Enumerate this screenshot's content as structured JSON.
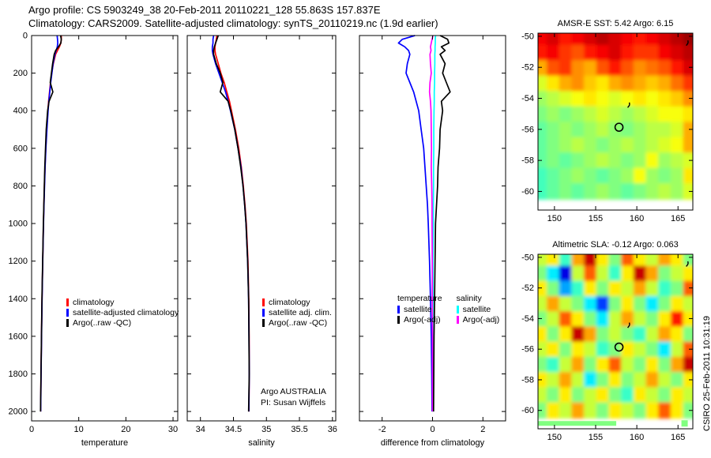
{
  "header": {
    "line1": "Argo profile: CS 5903249_38 20-Feb-2011 20110221_128 55.863S 157.837E",
    "line2": "Climatology: CARS2009. Satellite-adjusted climatology: synTS_20110219.nc (1.9d earlier)"
  },
  "stamp": "CSIRO 25-Feb-2011 10:31:19",
  "pi_note": {
    "line1": "Argo AUSTRALIA",
    "line2": "PI: Susan Wijffels"
  },
  "colors": {
    "climatology": "#ff0000",
    "satellite": "#0000ff",
    "argo": "#000000",
    "sal_satellite": "#00ffff",
    "sal_argo": "#ff00ff"
  },
  "legends": {
    "temperature": [
      {
        "label": "climatology",
        "color": "#ff0000"
      },
      {
        "label": "satellite-adjusted climatology",
        "color": "#0000ff"
      },
      {
        "label": "Argo(..raw -QC)",
        "color": "#000000"
      }
    ],
    "salinity": [
      {
        "label": "climatology",
        "color": "#ff0000"
      },
      {
        "label": "satellite adj. clim.",
        "color": "#0000ff"
      },
      {
        "label": "Argo(..raw -QC)",
        "color": "#000000"
      }
    ],
    "difference": {
      "columns": [
        {
          "header": "temperature",
          "items": [
            {
              "label": "satellite",
              "color": "#0000ff"
            },
            {
              "label": "Argo(-adj)",
              "color": "#000000"
            }
          ]
        },
        {
          "header": "salinity",
          "items": [
            {
              "label": "satellite",
              "color": "#00ffff"
            },
            {
              "label": "Argo(-adj)",
              "color": "#ff00ff"
            }
          ]
        }
      ]
    }
  },
  "chart_data": [
    {
      "id": "temperature_profile",
      "type": "line",
      "xlabel": "temperature",
      "xlim": [
        0,
        31
      ],
      "xticks": [
        0,
        10,
        20,
        30
      ],
      "ylim": [
        0,
        2050
      ],
      "yticks": [
        0,
        200,
        400,
        600,
        800,
        1000,
        1200,
        1400,
        1600,
        1800,
        2000
      ],
      "ytick_labels": true,
      "depths": [
        0,
        20,
        40,
        60,
        80,
        100,
        150,
        200,
        250,
        300,
        350,
        400,
        500,
        600,
        700,
        800,
        900,
        1000,
        1200,
        1400,
        1600,
        1800,
        2000
      ],
      "series": [
        {
          "name": "climatology",
          "color": "#ff0000",
          "values": [
            6.3,
            6.3,
            6.2,
            5.9,
            5.5,
            5.1,
            4.6,
            4.25,
            4.0,
            3.8,
            3.6,
            3.45,
            3.2,
            3.0,
            2.85,
            2.72,
            2.62,
            2.52,
            2.36,
            2.22,
            2.1,
            2.0,
            1.92
          ]
        },
        {
          "name": "satellite-adjusted climatology",
          "color": "#0000ff",
          "values": [
            5.42,
            5.5,
            5.55,
            5.45,
            5.2,
            4.95,
            4.55,
            4.3,
            4.05,
            3.85,
            3.65,
            3.5,
            3.25,
            3.03,
            2.87,
            2.74,
            2.63,
            2.53,
            2.37,
            2.23,
            2.11,
            2.01,
            1.93
          ]
        },
        {
          "name": "Argo(..raw -QC)",
          "color": "#000000",
          "values": [
            6.15,
            6.3,
            6.2,
            5.7,
            5.1,
            4.8,
            4.45,
            4.2,
            3.95,
            4.5,
            3.7,
            3.4,
            3.1,
            2.95,
            2.8,
            2.7,
            2.6,
            2.5,
            2.35,
            2.2,
            2.1,
            2.0,
            1.9
          ]
        }
      ]
    },
    {
      "id": "salinity_profile",
      "type": "line",
      "xlabel": "salinity",
      "xlim": [
        33.8,
        36.05
      ],
      "xticks": [
        34,
        34.5,
        35,
        35.5,
        36
      ],
      "ylim": [
        0,
        2050
      ],
      "yticks": [
        0,
        200,
        400,
        600,
        800,
        1000,
        1200,
        1400,
        1600,
        1800,
        2000
      ],
      "ytick_labels": false,
      "depths": [
        0,
        20,
        40,
        60,
        80,
        100,
        150,
        200,
        250,
        300,
        350,
        400,
        500,
        600,
        700,
        800,
        900,
        1000,
        1200,
        1400,
        1600,
        1800,
        2000
      ],
      "series": [
        {
          "name": "climatology",
          "color": "#ff0000",
          "values": [
            34.25,
            34.24,
            34.23,
            34.22,
            34.22,
            34.23,
            34.27,
            34.31,
            34.36,
            34.4,
            34.44,
            34.47,
            34.53,
            34.58,
            34.62,
            34.65,
            34.675,
            34.695,
            34.72,
            34.732,
            34.738,
            34.74,
            34.735
          ]
        },
        {
          "name": "satellite adj. clim.",
          "color": "#0000ff",
          "values": [
            34.2,
            34.19,
            34.19,
            34.18,
            34.18,
            34.19,
            34.23,
            34.28,
            34.33,
            34.38,
            34.42,
            34.455,
            34.52,
            34.57,
            34.615,
            34.645,
            34.67,
            34.69,
            34.716,
            34.73,
            34.736,
            34.74,
            34.733
          ]
        },
        {
          "name": "Argo(..raw -QC)",
          "color": "#000000",
          "values": [
            34.27,
            34.25,
            34.23,
            34.21,
            34.2,
            34.2,
            34.24,
            34.3,
            34.34,
            34.3,
            34.42,
            34.46,
            34.52,
            34.57,
            34.61,
            34.645,
            34.67,
            34.69,
            34.715,
            34.73,
            34.735,
            34.74,
            34.73
          ]
        }
      ]
    },
    {
      "id": "difference_profile",
      "type": "line",
      "xlabel": "difference from climatology",
      "xlim": [
        -2.9,
        2.9
      ],
      "xticks": [
        -2,
        0,
        2
      ],
      "ylim": [
        0,
        2050
      ],
      "yticks": [
        0,
        200,
        400,
        600,
        800,
        1000,
        1200,
        1400,
        1600,
        1800,
        2000
      ],
      "ytick_labels": false,
      "depths": [
        0,
        20,
        40,
        60,
        80,
        100,
        150,
        200,
        250,
        300,
        350,
        400,
        500,
        600,
        700,
        800,
        900,
        1000,
        1200,
        1400,
        1600,
        1800,
        2000
      ],
      "series": [
        {
          "name": "temperature satellite",
          "color": "#0000ff",
          "values": [
            -0.7,
            -1.2,
            -1.35,
            -1.1,
            -0.95,
            -0.9,
            -1.0,
            -1.05,
            -0.9,
            -0.75,
            -0.65,
            -0.55,
            -0.45,
            -0.35,
            -0.3,
            -0.25,
            -0.2,
            -0.17,
            -0.12,
            -0.08,
            -0.05,
            -0.03,
            -0.02
          ]
        },
        {
          "name": "salinity satellite",
          "color": "#00ffff",
          "values": [
            0.12,
            0.11,
            0.11,
            0.1,
            0.1,
            0.09,
            0.09,
            0.08,
            0.08,
            0.07,
            0.07,
            0.06,
            0.05,
            0.05,
            0.04,
            0.04,
            0.03,
            0.03,
            0.02,
            0.02,
            0.01,
            0.01,
            0.01
          ]
        },
        {
          "name": "salinity Argo(-adj)",
          "color": "#ff00ff",
          "values": [
            0.02,
            -0.02,
            -0.05,
            -0.08,
            -0.06,
            -0.1,
            -0.08,
            -0.05,
            -0.1,
            -0.12,
            -0.08,
            -0.06,
            -0.05,
            -0.04,
            -0.05,
            -0.03,
            -0.02,
            -0.02,
            -0.01,
            -0.01,
            0.0,
            0.0,
            0.0
          ]
        },
        {
          "name": "temperature Argo(-adj)",
          "color": "#000000",
          "values": [
            0.3,
            0.6,
            0.65,
            0.35,
            0.5,
            0.3,
            0.5,
            0.4,
            0.55,
            0.7,
            0.35,
            0.4,
            0.3,
            0.28,
            0.22,
            0.2,
            0.16,
            0.12,
            0.1,
            0.08,
            0.06,
            0.05,
            0.04
          ]
        }
      ]
    },
    {
      "id": "sst_map",
      "type": "heatmap",
      "title": "AMSR-E SST: 5.42 Argo: 6.15",
      "xlim": [
        148,
        166.8
      ],
      "xticks": [
        150,
        155,
        160,
        165
      ],
      "ylim": [
        -49.8,
        -61.2
      ],
      "yticks": [
        -50,
        -52,
        -54,
        -56,
        -58,
        -60
      ],
      "domain": [
        -3,
        14
      ],
      "grid_lat_bottom": -60.5,
      "grid": [
        [
          12,
          12.5,
          11.5,
          12,
          12.5,
          13,
          12.5,
          12,
          11.5,
          12,
          12.5,
          13,
          13.5
        ],
        [
          11.5,
          12,
          11,
          10.5,
          11.5,
          12,
          12.5,
          11.5,
          11,
          11,
          12,
          12.5,
          13
        ],
        [
          9,
          10.5,
          11,
          9.5,
          9,
          10.5,
          11.5,
          10.5,
          9.5,
          10,
          10.5,
          11.5,
          12.5
        ],
        [
          7,
          8,
          9,
          9.5,
          8.5,
          8,
          9,
          9.5,
          9,
          8.5,
          9,
          10,
          11
        ],
        [
          6,
          6.5,
          7,
          7.5,
          8,
          7.5,
          7,
          7.5,
          8,
          7.5,
          8,
          8.5,
          9.5
        ],
        [
          5.5,
          6,
          5.5,
          6,
          6.5,
          7,
          6.5,
          6,
          6.5,
          7,
          7.5,
          7.5,
          8
        ],
        [
          5,
          5.5,
          6,
          5.5,
          6,
          6.5,
          5.8,
          5.5,
          6,
          6.5,
          6.5,
          7,
          9
        ],
        [
          5,
          5.5,
          6,
          6.5,
          6,
          5.5,
          6,
          6.5,
          6,
          6.5,
          7,
          7.5,
          9
        ],
        [
          5,
          5.5,
          5,
          5.5,
          6,
          6.5,
          6,
          5.5,
          6,
          7.5,
          6,
          6.5,
          7
        ],
        [
          4.5,
          5,
          5.5,
          6,
          5.5,
          5,
          5.5,
          6,
          7.5,
          6,
          5.5,
          6,
          8
        ],
        [
          4.5,
          5,
          5.5,
          5,
          5.5,
          6,
          5.5,
          5,
          5.5,
          6,
          6.5,
          6,
          7
        ]
      ],
      "float": {
        "lon": 157.837,
        "lat": -55.863
      },
      "islands": [
        {
          "name": "Macquarie Island",
          "lon": 158.9,
          "lat": -54.6
        },
        {
          "name": "Auckland Islands",
          "lon": 166.0,
          "lat": -50.6
        }
      ]
    },
    {
      "id": "sla_map",
      "type": "heatmap",
      "title": "Altimetric SLA: -0.12 Argo: 0.063",
      "xlim": [
        148,
        166.8
      ],
      "xticks": [
        150,
        155,
        160,
        165
      ],
      "ylim": [
        -49.8,
        -61.2
      ],
      "yticks": [
        -50,
        -52,
        -54,
        -56,
        -58,
        -60
      ],
      "domain": [
        -0.35,
        0.35
      ],
      "grid_lat_bottom": -60.5,
      "grid": [
        [
          0.05,
          0.1,
          -0.05,
          0.15,
          0.3,
          0.1,
          0,
          0.2,
          0.1,
          0.05,
          0.15,
          0.1,
          0
        ],
        [
          0,
          -0.1,
          -0.28,
          0.05,
          0.2,
          0.05,
          -0.05,
          0.1,
          0.3,
          0.15,
          0,
          0.05,
          0.1
        ],
        [
          0.1,
          0,
          -0.15,
          -0.05,
          0.1,
          0,
          0.1,
          0.05,
          0.15,
          0.05,
          -0.05,
          0,
          0.2
        ],
        [
          0.05,
          0.15,
          0.05,
          0,
          -0.1,
          -0.22,
          0,
          0.1,
          0,
          -0.1,
          0,
          0.1,
          0.05
        ],
        [
          0,
          0.05,
          0.2,
          0.1,
          0,
          -0.1,
          0.05,
          0.15,
          0.05,
          0,
          0.1,
          0.25,
          0.1
        ],
        [
          0.1,
          0,
          0.1,
          0.3,
          0.15,
          0,
          0.05,
          0,
          -0.05,
          0.05,
          0.15,
          0.1,
          0
        ],
        [
          0.05,
          0.1,
          0,
          0.1,
          0.05,
          -0.05,
          0,
          0.1,
          0.05,
          0,
          -0.1,
          0.05,
          0.2
        ],
        [
          0,
          -0.05,
          0.05,
          0.15,
          0,
          0.1,
          0.2,
          0.05,
          0,
          0.1,
          0,
          0.15,
          0.3
        ],
        [
          0.1,
          0.05,
          0.15,
          0.05,
          -0.1,
          0,
          0.1,
          0,
          0.05,
          0.15,
          0.05,
          0,
          0.1
        ],
        [
          0.05,
          0,
          0.1,
          0,
          0.05,
          0.1,
          0,
          -0.05,
          0.1,
          0.05,
          0,
          0.1,
          0.05
        ],
        [
          0,
          0.1,
          0.05,
          0.15,
          0.05,
          0,
          0.1,
          0.05,
          0,
          0.1,
          0.2,
          0.1,
          0
        ]
      ],
      "float": {
        "lon": 157.837,
        "lat": -55.863
      },
      "islands": [
        {
          "name": "Macquarie Island",
          "lon": 158.9,
          "lat": -54.6
        },
        {
          "name": "Auckland Islands",
          "lon": 166.0,
          "lat": -50.6
        }
      ],
      "edge_strip": {
        "lon0": 148,
        "lon1": 157.5,
        "lat": -60.85,
        "value": 0
      },
      "edge_cell": {
        "lon": 165.8,
        "lat": -60.85,
        "value": 0
      }
    }
  ]
}
